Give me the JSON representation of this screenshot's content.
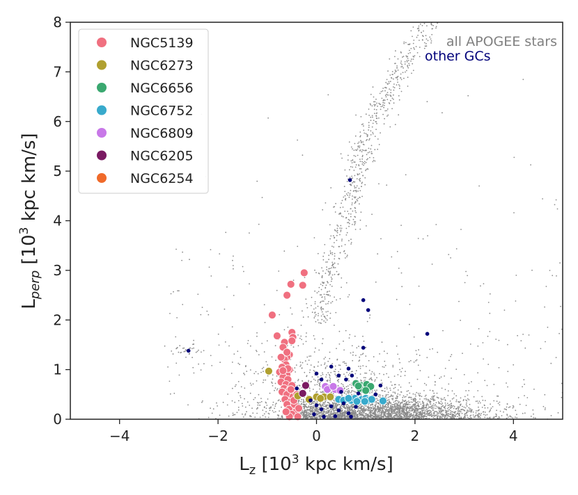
{
  "chart_data": {
    "type": "scatter",
    "xlabel": "Lz [10³ kpc km/s]",
    "ylabel": "Lperp [10³ kpc km/s]",
    "xlabel_parts": {
      "main": "L",
      "sub": "z",
      "rest": " [10",
      "sup": "3",
      "tail": " kpc km/s]"
    },
    "ylabel_parts": {
      "main": "L",
      "sub": "perp",
      "rest": " [10",
      "sup": "3",
      "tail": " kpc km/s]"
    },
    "xlim": [
      -5,
      5
    ],
    "ylim": [
      0,
      8
    ],
    "xticks": [
      -4,
      -2,
      0,
      2,
      4
    ],
    "yticks": [
      0,
      1,
      2,
      3,
      4,
      5,
      6,
      7,
      8
    ],
    "legend_position": "top-left",
    "annotations": [
      {
        "text": "all APOGEE stars",
        "color": "#808080"
      },
      {
        "text": "other GCs",
        "color": "#00007a"
      }
    ],
    "background": {
      "name": "all APOGEE stars",
      "color": "#8c8c8c",
      "density_regions": [
        {
          "name": "disk",
          "x_range": [
            -0.5,
            3.8
          ],
          "y_range": [
            0.0,
            0.65
          ],
          "approx_points": 2600
        },
        {
          "name": "halo-spread",
          "x_range": [
            -2.5,
            3.0
          ],
          "y_range": [
            0.0,
            2.0
          ],
          "approx_points": 1000
        },
        {
          "name": "stream-arm",
          "x_range": [
            0.0,
            2.6
          ],
          "y_range": [
            2.0,
            8.0
          ],
          "approx_points": 700
        },
        {
          "name": "outer",
          "x_range": [
            -3.0,
            5.0
          ],
          "y_range": [
            0.0,
            8.0
          ],
          "approx_points": 300
        }
      ],
      "stream_path": [
        [
          0.0,
          2.0
        ],
        [
          0.3,
          3.0
        ],
        [
          0.6,
          4.0
        ],
        [
          0.8,
          5.0
        ],
        [
          1.0,
          5.7
        ],
        [
          1.4,
          6.5
        ],
        [
          1.8,
          7.2
        ],
        [
          2.3,
          8.0
        ]
      ]
    },
    "series": [
      {
        "name": "NGC5139",
        "color": "#f07080",
        "points": [
          [
            -0.25,
            2.95
          ],
          [
            -0.28,
            2.7
          ],
          [
            -0.52,
            2.72
          ],
          [
            -0.6,
            2.5
          ],
          [
            -0.9,
            2.1
          ],
          [
            -0.8,
            1.68
          ],
          [
            -0.5,
            1.75
          ],
          [
            -0.48,
            1.65
          ],
          [
            -0.5,
            1.58
          ],
          [
            -0.65,
            1.55
          ],
          [
            -0.68,
            1.45
          ],
          [
            -0.55,
            1.3
          ],
          [
            -0.6,
            1.25
          ],
          [
            -0.65,
            1.2
          ],
          [
            -0.62,
            1.1
          ],
          [
            -0.7,
            1.05
          ],
          [
            -0.55,
            1.0
          ],
          [
            -0.75,
            0.95
          ],
          [
            -0.6,
            0.9
          ],
          [
            -0.68,
            0.85
          ],
          [
            -0.58,
            0.8
          ],
          [
            -0.72,
            0.75
          ],
          [
            -0.62,
            0.7
          ],
          [
            -0.5,
            0.68
          ],
          [
            -0.66,
            0.62
          ],
          [
            -0.55,
            0.58
          ],
          [
            -0.7,
            0.55
          ],
          [
            -0.6,
            0.5
          ],
          [
            -0.48,
            0.45
          ],
          [
            -0.64,
            0.4
          ],
          [
            -0.52,
            0.35
          ],
          [
            -0.6,
            0.3
          ],
          [
            -0.45,
            0.25
          ],
          [
            -0.56,
            0.2
          ],
          [
            -0.42,
            0.15
          ],
          [
            -0.5,
            0.1
          ],
          [
            -0.38,
            0.05
          ],
          [
            -0.55,
            0.05
          ],
          [
            -0.45,
            0.3
          ],
          [
            -0.4,
            0.5
          ],
          [
            -0.72,
            1.25
          ],
          [
            -0.6,
            1.35
          ],
          [
            -0.58,
            1.02
          ],
          [
            -0.68,
            0.98
          ],
          [
            -0.52,
            0.6
          ],
          [
            -0.46,
            0.38
          ],
          [
            -0.36,
            0.22
          ],
          [
            -0.62,
            0.15
          ]
        ]
      },
      {
        "name": "NGC6273",
        "color": "#b0a030",
        "points": [
          [
            -0.97,
            0.97
          ],
          [
            -0.38,
            0.47
          ],
          [
            -0.15,
            0.4
          ],
          [
            0.0,
            0.45
          ],
          [
            0.15,
            0.45
          ],
          [
            0.28,
            0.45
          ],
          [
            0.08,
            0.42
          ]
        ]
      },
      {
        "name": "NGC6656",
        "color": "#3aa870",
        "points": [
          [
            0.8,
            0.72
          ],
          [
            0.9,
            0.68
          ],
          [
            0.98,
            0.65
          ],
          [
            1.05,
            0.62
          ],
          [
            0.95,
            0.6
          ],
          [
            1.02,
            0.7
          ],
          [
            0.88,
            0.62
          ],
          [
            1.1,
            0.66
          ],
          [
            0.85,
            0.67
          ],
          [
            1.0,
            0.58
          ]
        ]
      },
      {
        "name": "NGC6752",
        "color": "#38aacc",
        "points": [
          [
            0.45,
            0.4
          ],
          [
            0.6,
            0.4
          ],
          [
            0.7,
            0.38
          ],
          [
            0.78,
            0.42
          ],
          [
            0.85,
            0.38
          ],
          [
            0.92,
            0.4
          ],
          [
            1.0,
            0.42
          ],
          [
            1.05,
            0.38
          ],
          [
            1.12,
            0.4
          ],
          [
            1.35,
            0.37
          ],
          [
            0.55,
            0.38
          ],
          [
            0.65,
            0.42
          ],
          [
            0.82,
            0.36
          ],
          [
            0.98,
            0.36
          ]
        ]
      },
      {
        "name": "NGC6809",
        "color": "#c878e8",
        "points": [
          [
            0.18,
            0.66
          ],
          [
            0.28,
            0.63
          ],
          [
            0.38,
            0.6
          ],
          [
            0.48,
            0.58
          ],
          [
            0.22,
            0.6
          ],
          [
            0.34,
            0.66
          ]
        ]
      },
      {
        "name": "NGC6205",
        "color": "#7a1a62",
        "points": [
          [
            -0.22,
            0.68
          ],
          [
            -0.28,
            0.52
          ]
        ]
      },
      {
        "name": "NGC6254",
        "color": "#f06a2a",
        "points": []
      },
      {
        "name": "other GCs",
        "color": "#00007a",
        "marker": "small",
        "points": [
          [
            0.68,
            4.82
          ],
          [
            0.95,
            2.4
          ],
          [
            1.05,
            2.2
          ],
          [
            2.25,
            1.72
          ],
          [
            0.95,
            1.44
          ],
          [
            -2.6,
            1.38
          ],
          [
            0.3,
            1.06
          ],
          [
            0.65,
            1.02
          ],
          [
            0.0,
            0.92
          ],
          [
            0.45,
            0.88
          ],
          [
            0.72,
            0.88
          ],
          [
            0.1,
            0.8
          ],
          [
            0.6,
            0.8
          ],
          [
            1.3,
            0.68
          ],
          [
            -0.4,
            0.62
          ],
          [
            0.5,
            0.55
          ],
          [
            0.85,
            0.52
          ],
          [
            1.2,
            0.5
          ],
          [
            -0.12,
            0.38
          ],
          [
            0.55,
            0.32
          ],
          [
            0.3,
            0.26
          ],
          [
            0.1,
            0.2
          ],
          [
            0.45,
            0.18
          ],
          [
            0.65,
            0.12
          ],
          [
            -0.05,
            0.1
          ],
          [
            0.38,
            0.06
          ],
          [
            0.7,
            0.05
          ],
          [
            0.15,
            0.05
          ],
          [
            0.0,
            0.28
          ],
          [
            0.8,
            0.25
          ]
        ]
      }
    ]
  }
}
